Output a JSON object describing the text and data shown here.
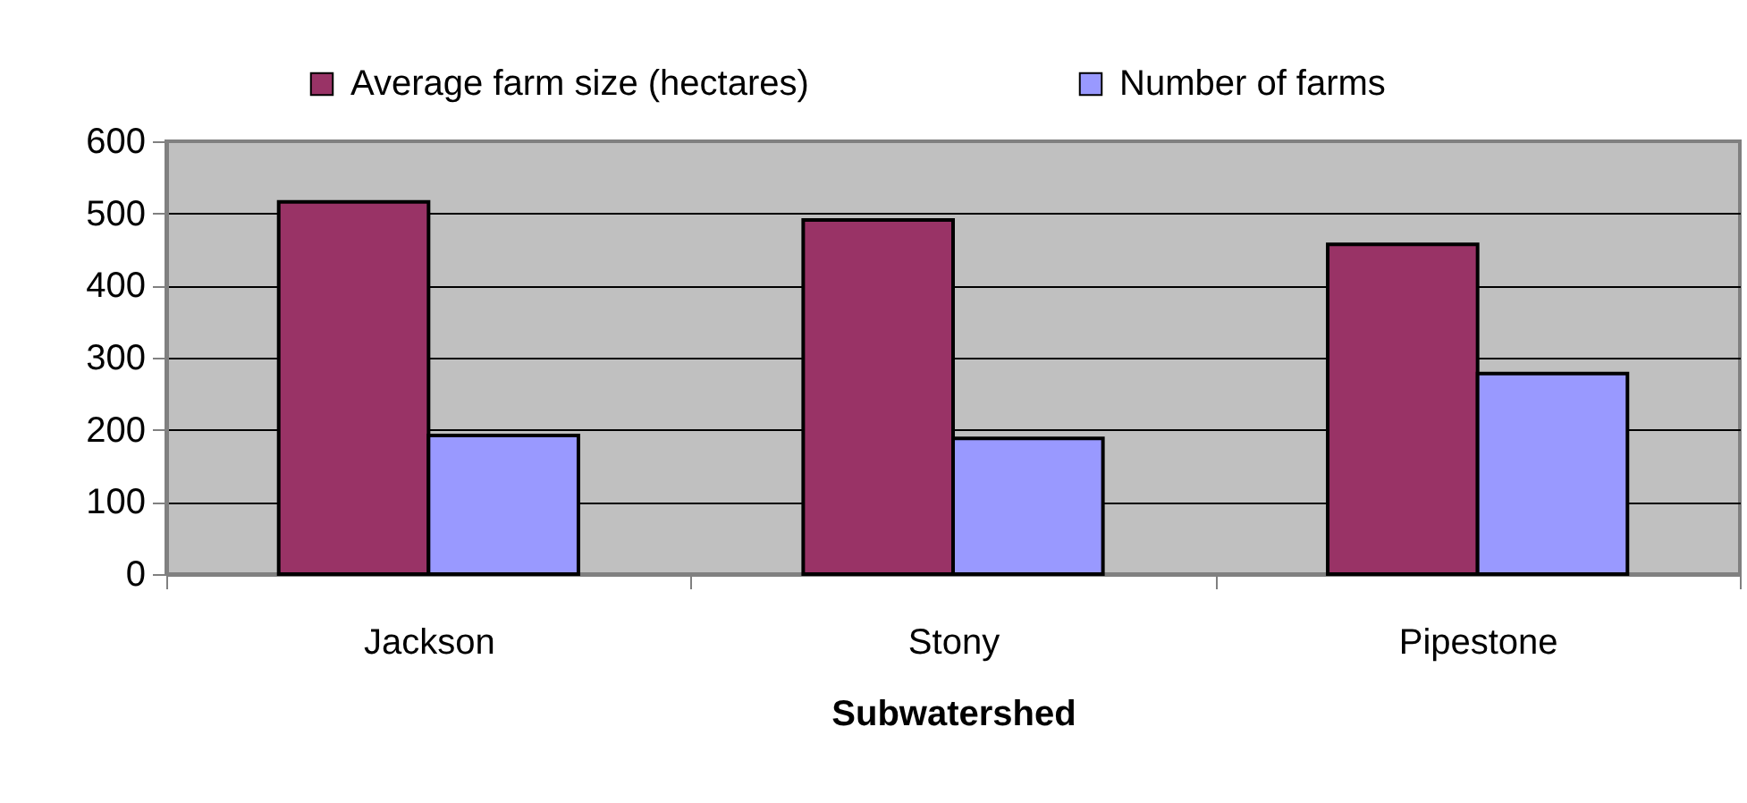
{
  "chart_data": {
    "type": "bar",
    "categories": [
      "Jackson",
      "Stony",
      "Pipestone"
    ],
    "xlabel": "Subwatershed",
    "series": [
      {
        "name": "Average farm size (hectares)",
        "color": "#993366",
        "values": [
          516,
          491,
          457
        ]
      },
      {
        "name": "Number of farms",
        "color": "#9999ff",
        "values": [
          192,
          188,
          278
        ]
      }
    ],
    "ylim": [
      0,
      600
    ],
    "yticks": [
      0,
      100,
      200,
      300,
      400,
      500,
      600
    ],
    "grid": "y",
    "legend": "top"
  }
}
